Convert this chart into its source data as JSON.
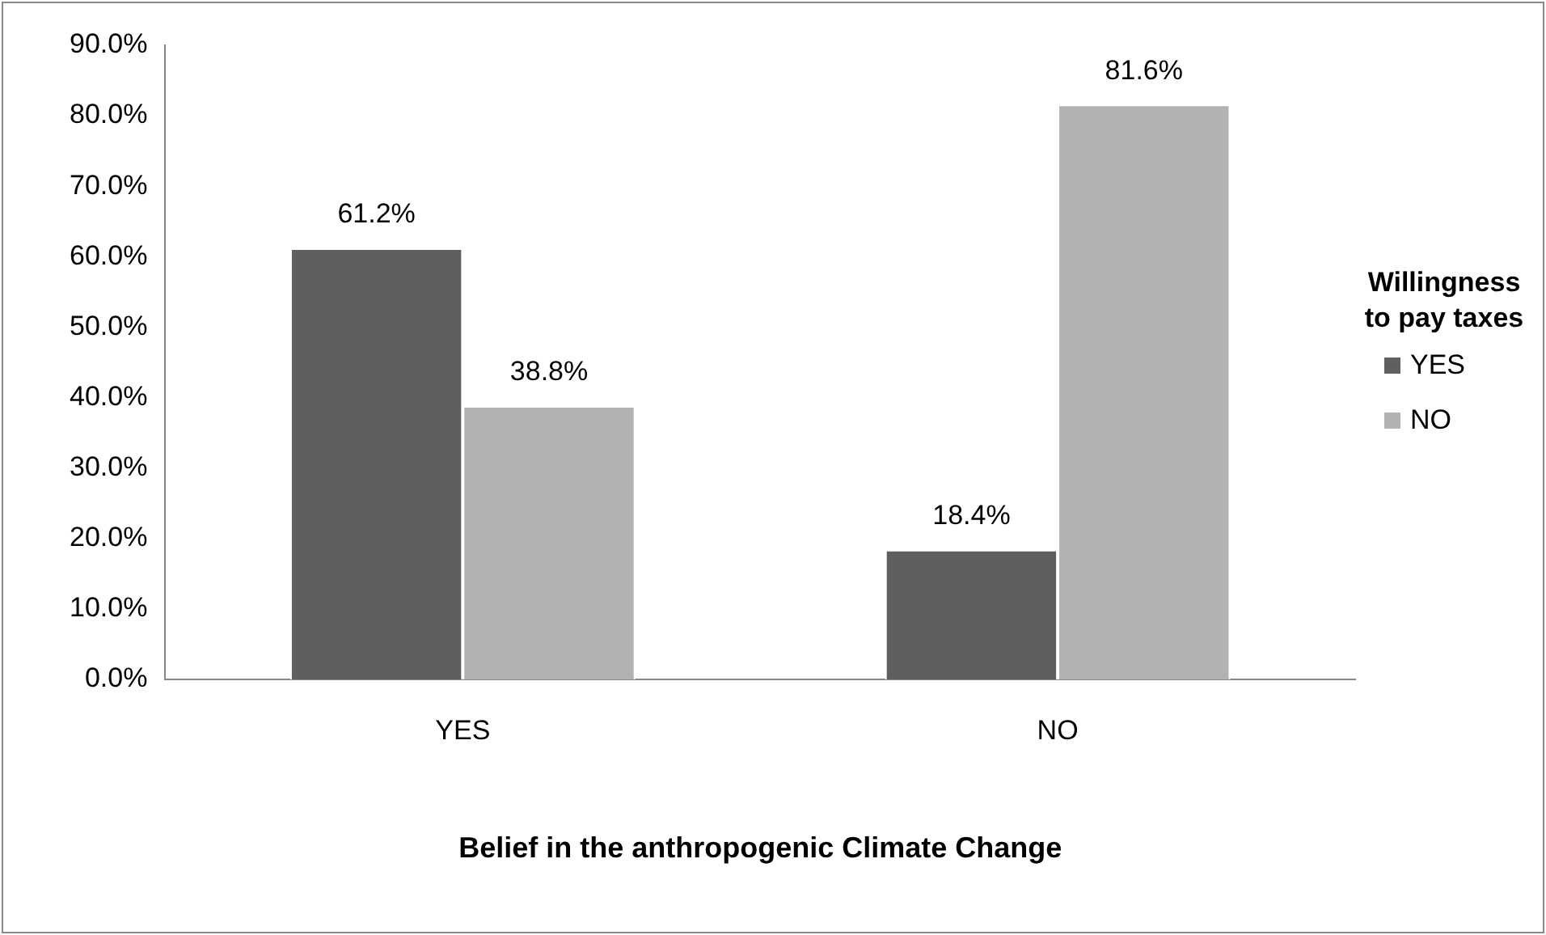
{
  "chart_data": {
    "type": "bar",
    "xlabel": "Belief in the anthropogenic Climate Change",
    "legend_title": "Willingness to pay taxes",
    "legend": "right",
    "categories": [
      "YES",
      "NO"
    ],
    "series": [
      {
        "name": "YES",
        "color": "#5f5f5f",
        "values": [
          61.2,
          18.4
        ],
        "value_labels": [
          "61.2%",
          "18.4%"
        ]
      },
      {
        "name": "NO",
        "color": "#b2b2b2",
        "values": [
          38.8,
          81.6
        ],
        "value_labels": [
          "38.8%",
          "81.6%"
        ]
      }
    ],
    "ylim": [
      0,
      90
    ],
    "yticks": [
      {
        "value": 0,
        "label": "0.0%"
      },
      {
        "value": 10,
        "label": "10.0%"
      },
      {
        "value": 20,
        "label": "20.0%"
      },
      {
        "value": 30,
        "label": "30.0%"
      },
      {
        "value": 40,
        "label": "40.0%"
      },
      {
        "value": 50,
        "label": "50.0%"
      },
      {
        "value": 60,
        "label": "60.0%"
      },
      {
        "value": 70,
        "label": "70.0%"
      },
      {
        "value": 80,
        "label": "80.0%"
      },
      {
        "value": 90,
        "label": "90.0%"
      }
    ],
    "grid": false
  }
}
